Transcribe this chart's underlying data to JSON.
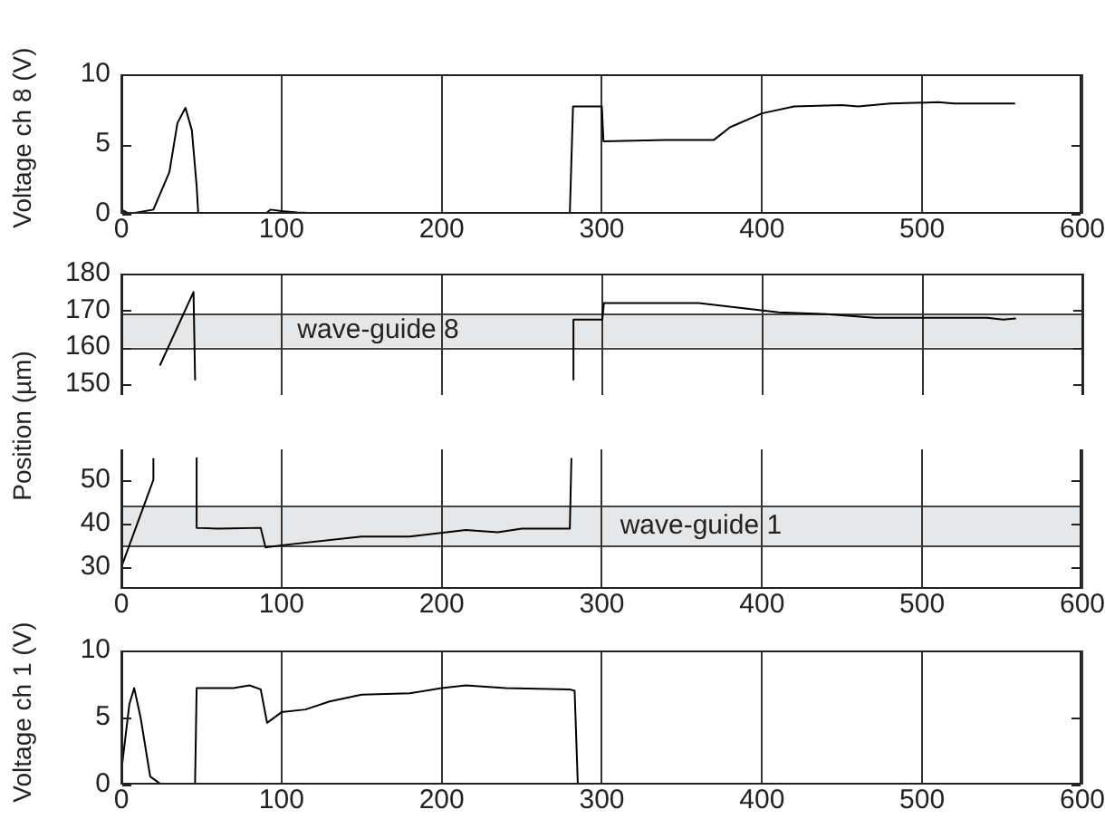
{
  "chart_data": [
    {
      "type": "line",
      "ylabel": "Voltage ch 8 (V)",
      "xlim": [
        0,
        600
      ],
      "xticks": [
        0,
        100,
        200,
        300,
        400,
        500,
        600
      ],
      "ylim": [
        0,
        10
      ],
      "yticks": [
        0,
        5,
        10
      ],
      "grid": "x",
      "color": "#000000",
      "x": [
        0,
        5,
        20,
        30,
        35,
        40,
        44,
        47,
        48,
        90,
        93,
        100,
        110,
        130,
        280,
        282,
        300,
        301,
        340,
        370,
        380,
        400,
        420,
        450,
        460,
        480,
        510,
        520,
        558
      ],
      "values": [
        0.3,
        0,
        0.3,
        3,
        6.5,
        7.6,
        6,
        2,
        0,
        0,
        0.3,
        0.2,
        0.1,
        0,
        0,
        7.7,
        7.7,
        5.2,
        5.3,
        5.3,
        6.2,
        7.2,
        7.7,
        7.8,
        7.7,
        7.9,
        8,
        7.9,
        7.9
      ]
    },
    {
      "type": "line",
      "ylabel": "Position (µm)",
      "xlim": [
        0,
        600
      ],
      "xticks": [
        0,
        100,
        200,
        300,
        400,
        500,
        600
      ],
      "ylim": [
        147,
        180
      ],
      "yticks": [
        150,
        160,
        170,
        180
      ],
      "grid": "x",
      "tick_labels": "y",
      "color": "#000000",
      "bands": [
        {
          "axis": "y",
          "from": 160,
          "to": 169,
          "label": "wave-guide 8",
          "color": "#e6e7e9"
        }
      ],
      "ref_lines": [
        {
          "axis": "y",
          "value": 160,
          "color": "#444444"
        },
        {
          "axis": "y",
          "value": 169,
          "color": "#444444"
        }
      ],
      "x": [
        24,
        45,
        46,
        164,
        282,
        282,
        300,
        301,
        320,
        360,
        410,
        440,
        470,
        500,
        540,
        550,
        558
      ],
      "values": [
        155,
        175,
        151,
        null,
        151,
        167.5,
        167.5,
        172,
        172,
        172,
        169.5,
        169,
        168,
        168,
        168,
        167.5,
        167.8
      ]
    },
    {
      "type": "line",
      "xlim": [
        0,
        600
      ],
      "xticks": [
        0,
        100,
        200,
        300,
        400,
        500,
        600
      ],
      "ylim": [
        25,
        57
      ],
      "yticks": [
        30,
        40,
        50
      ],
      "grid": "x",
      "color": "#000000",
      "bands": [
        {
          "axis": "y",
          "from": 35,
          "to": 44,
          "label": "wave-guide 1",
          "color": "#e6e7e9"
        }
      ],
      "ref_lines": [
        {
          "axis": "y",
          "value": 35,
          "color": "#444444"
        },
        {
          "axis": "y",
          "value": 44,
          "color": "#444444"
        }
      ],
      "x": [
        0,
        20,
        20,
        33,
        47,
        47,
        60,
        87,
        90,
        100,
        150,
        180,
        215,
        235,
        250,
        280,
        281
      ],
      "values": [
        30,
        50,
        55,
        null,
        55,
        39,
        38.8,
        39,
        34.5,
        35,
        37,
        37,
        38.5,
        38,
        38.8,
        38.8,
        55
      ]
    },
    {
      "type": "line",
      "ylabel": "Voltage ch 1 (V)",
      "xlim": [
        0,
        600
      ],
      "xticks": [
        0,
        100,
        200,
        300,
        400,
        500,
        600
      ],
      "ylim": [
        0,
        10
      ],
      "yticks": [
        0,
        5,
        10
      ],
      "grid": "x",
      "color": "#000000",
      "x": [
        0,
        5,
        8,
        12,
        18,
        25,
        46,
        47,
        70,
        80,
        87,
        91,
        100,
        115,
        130,
        150,
        180,
        200,
        215,
        240,
        280,
        283,
        285,
        558
      ],
      "values": [
        1,
        6,
        7.2,
        5,
        0.6,
        0,
        0,
        7.2,
        7.2,
        7.4,
        7.1,
        4.6,
        5.4,
        5.6,
        6.2,
        6.7,
        6.8,
        7.2,
        7.4,
        7.2,
        7.1,
        7,
        0,
        0
      ]
    }
  ]
}
